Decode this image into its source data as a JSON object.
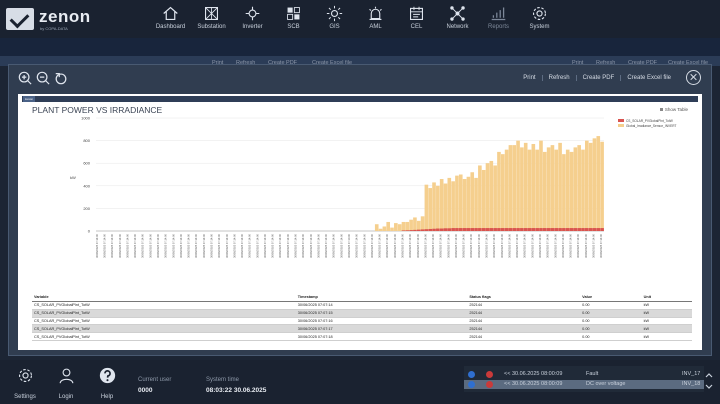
{
  "app": {
    "logo_text": "zenon",
    "logo_sub": "by COPA-DATA"
  },
  "nav": [
    {
      "label": "Dashboard",
      "icon": "home-icon"
    },
    {
      "label": "Substation",
      "icon": "substation-icon"
    },
    {
      "label": "Inverter",
      "icon": "inverter-icon"
    },
    {
      "label": "SCB",
      "icon": "scb-icon"
    },
    {
      "label": "GIS",
      "icon": "sun-icon"
    },
    {
      "label": "AML",
      "icon": "alarm-light-icon"
    },
    {
      "label": "CEL",
      "icon": "calendar-icon"
    },
    {
      "label": "Network",
      "icon": "network-icon"
    },
    {
      "label": "Reports",
      "icon": "reports-icon"
    },
    {
      "label": "System",
      "icon": "gear-icon"
    }
  ],
  "background_toolbar": {
    "print": "Print",
    "refresh": "Refresh",
    "create_pdf": "Create PDF",
    "create_excel": "Create Excel file",
    "print2": "Print",
    "refresh2": "Refresh",
    "create_pdf2": "Create PDF",
    "create_excel2": "Create Excel file"
  },
  "dialog": {
    "print": "Print",
    "refresh": "Refresh",
    "create_pdf": "Create PDF",
    "create_excel": "Create Excel file"
  },
  "report": {
    "brand": "zenon",
    "title": "PLANT POWER VS IRRADIANCE",
    "show_table": "Show Table"
  },
  "chart_data": {
    "type": "bar",
    "title": "PLANT POWER VS IRRADIANCE",
    "ylabel": "kW",
    "ylim": [
      0,
      1000
    ],
    "yticks": [
      0,
      100,
      200,
      300,
      400,
      500,
      600,
      700,
      800,
      900,
      1000
    ],
    "legend_position": "top-right",
    "grid": true,
    "series": [
      {
        "name": "CS_SOLAR_PVGlobalPlnt_TotW",
        "color": "#d9534f",
        "values": [
          0,
          0,
          0,
          0,
          0,
          0,
          0,
          0,
          0,
          0,
          0,
          0,
          0,
          0,
          0,
          0,
          0,
          0,
          0,
          0,
          0,
          0,
          0,
          0,
          0,
          0,
          0,
          0,
          0,
          0,
          0,
          0,
          0,
          0,
          0,
          0,
          0,
          0,
          0,
          0,
          0,
          0,
          0,
          0,
          0,
          0,
          0,
          0,
          0,
          0,
          0,
          0,
          0,
          0,
          0,
          0,
          0,
          0,
          0,
          0,
          0,
          0,
          0,
          0,
          0,
          0,
          0,
          0,
          0,
          0,
          0,
          0,
          0,
          0,
          0,
          0,
          0,
          0,
          0,
          0,
          5,
          6,
          8,
          10,
          12,
          14,
          16,
          18,
          20,
          22,
          22,
          24,
          24,
          26,
          26,
          26,
          26,
          26,
          26,
          26,
          26,
          26,
          26,
          26,
          26,
          26,
          26,
          26,
          26,
          26,
          26,
          26,
          26,
          26,
          26,
          26,
          26,
          26,
          26,
          26,
          26,
          26,
          26,
          26,
          26,
          26,
          26,
          26,
          26,
          26,
          26,
          26,
          26
        ]
      },
      {
        "name": "Global_Irradiance_Sensor_INVERT",
        "color": "#f5cf8e",
        "values": [
          0,
          0,
          0,
          0,
          0,
          0,
          0,
          0,
          0,
          0,
          0,
          0,
          0,
          0,
          0,
          0,
          0,
          0,
          0,
          0,
          0,
          0,
          0,
          0,
          0,
          0,
          0,
          0,
          0,
          0,
          0,
          0,
          0,
          0,
          0,
          0,
          0,
          0,
          0,
          0,
          0,
          0,
          0,
          0,
          0,
          0,
          0,
          0,
          0,
          0,
          0,
          0,
          0,
          0,
          0,
          0,
          0,
          0,
          0,
          0,
          0,
          0,
          0,
          0,
          0,
          0,
          0,
          0,
          0,
          0,
          0,
          0,
          0,
          60,
          20,
          40,
          80,
          30,
          70,
          60,
          80,
          80,
          100,
          120,
          90,
          130,
          410,
          380,
          430,
          400,
          460,
          420,
          470,
          440,
          490,
          500,
          460,
          480,
          520,
          470,
          580,
          540,
          600,
          620,
          580,
          700,
          680,
          720,
          760,
          760,
          800,
          740,
          780,
          720,
          770,
          720,
          800,
          700,
          740,
          760,
          720,
          780,
          680,
          720,
          700,
          740,
          760,
          720,
          800,
          780,
          820,
          840,
          790,
          860,
          760,
          820,
          920,
          860,
          900,
          880
        ]
      }
    ],
    "x_label_format": "30/06/2025 07:14:00"
  },
  "table": {
    "headers": [
      "Variable",
      "Timestamp",
      "Status flags",
      "Value",
      "Unit"
    ],
    "rows": [
      [
        "CS_SOLAR_PVGlobalPlnt_TotW",
        "30/06/2025 07:07:14",
        "252144",
        "0.00",
        "kW"
      ],
      [
        "CS_SOLAR_PVGlobalPlnt_TotW",
        "30/06/2025 07:07:15",
        "252144",
        "0.00",
        "kW"
      ],
      [
        "CS_SOLAR_PVGlobalPlnt_TotW",
        "30/06/2025 07:07:16",
        "252144",
        "0.00",
        "kW"
      ],
      [
        "CS_SOLAR_PVGlobalPlnt_TotW",
        "30/06/2025 07:07:17",
        "252144",
        "0.00",
        "kW"
      ],
      [
        "CS_SOLAR_PVGlobalPlnt_TotW",
        "30/06/2025 07:07:18",
        "252144",
        "0.00",
        "kW"
      ]
    ]
  },
  "bottom": {
    "settings": "Settings",
    "login": "Login",
    "help": "Help",
    "current_user_label": "Current user",
    "current_user": "0000",
    "system_time_label": "System time",
    "system_time": "08:03:22 30.06.2025"
  },
  "alarms": [
    {
      "time": "<< 30.06.2025 08:00:09",
      "text": "Fault",
      "object": "INV_17"
    },
    {
      "time": "<< 30.06.2025 08:00:09",
      "text": "DC over voltage",
      "object": "INV_18"
    }
  ]
}
